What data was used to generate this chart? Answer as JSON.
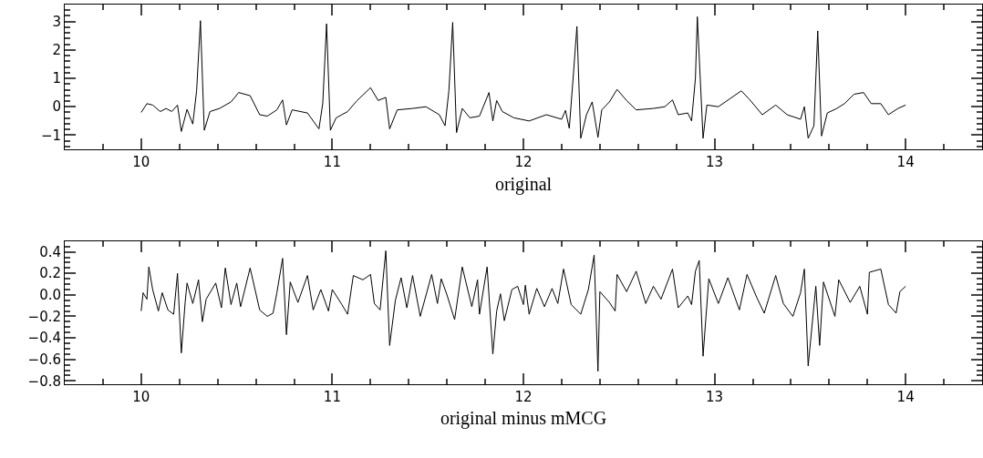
{
  "chart_data": [
    {
      "type": "line",
      "xlabel": "original",
      "color": "#000000",
      "grid": false,
      "legend": false,
      "x": [
        10.0,
        10.03,
        10.06,
        10.1,
        10.13,
        10.16,
        10.19,
        10.21,
        10.24,
        10.27,
        10.29,
        10.31,
        10.33,
        10.36,
        10.41,
        10.47,
        10.51,
        10.57,
        10.62,
        10.66,
        10.71,
        10.74,
        10.76,
        10.79,
        10.87,
        10.93,
        10.95,
        10.97,
        10.99,
        11.02,
        11.08,
        11.13,
        11.2,
        11.24,
        11.28,
        11.3,
        11.34,
        11.42,
        11.49,
        11.56,
        11.59,
        11.61,
        11.63,
        11.65,
        11.68,
        11.72,
        11.77,
        11.82,
        11.84,
        11.86,
        11.89,
        11.95,
        12.03,
        12.12,
        12.2,
        12.22,
        12.24,
        12.26,
        12.28,
        12.3,
        12.33,
        12.36,
        12.39,
        12.41,
        12.45,
        12.49,
        12.54,
        12.59,
        12.68,
        12.74,
        12.78,
        12.81,
        12.86,
        12.88,
        12.9,
        12.91,
        12.94,
        12.96,
        13.02,
        13.08,
        13.14,
        13.18,
        13.25,
        13.32,
        13.38,
        13.45,
        13.47,
        13.49,
        13.52,
        13.54,
        13.56,
        13.59,
        13.64,
        13.68,
        13.73,
        13.78,
        13.82,
        13.87,
        13.91,
        13.96,
        14.0
      ],
      "values": [
        -0.2,
        0.11,
        0.06,
        -0.17,
        -0.06,
        -0.17,
        0.06,
        -0.87,
        -0.09,
        -0.61,
        0.56,
        3.03,
        -0.83,
        -0.17,
        -0.06,
        0.17,
        0.5,
        0.39,
        -0.28,
        -0.33,
        -0.11,
        0.24,
        -0.64,
        -0.11,
        -0.22,
        -0.78,
        0.11,
        2.92,
        -0.83,
        -0.39,
        -0.17,
        0.22,
        0.67,
        0.22,
        0.33,
        -0.78,
        -0.11,
        -0.06,
        0,
        -0.28,
        -0.67,
        0.56,
        2.97,
        -0.91,
        -0.06,
        -0.39,
        -0.33,
        0.5,
        -0.5,
        0.22,
        -0.17,
        -0.39,
        -0.5,
        -0.28,
        -0.44,
        -0.13,
        -0.76,
        1.0,
        2.83,
        -1.11,
        -0.28,
        0.17,
        -1.08,
        -0.11,
        0.17,
        0.61,
        0.22,
        -0.11,
        -0.06,
        0,
        0.24,
        -0.28,
        -0.22,
        -0.5,
        1.0,
        3.17,
        -1.11,
        0.06,
        0,
        0.28,
        0.56,
        0.28,
        -0.28,
        0.06,
        -0.28,
        -0.44,
        0,
        -1.11,
        -0.67,
        2.67,
        -1.03,
        -0.22,
        -0.06,
        0.11,
        0.44,
        0.5,
        0.11,
        0.11,
        -0.28,
        -0.06,
        0.06
      ],
      "xlim": [
        9.6,
        14.4
      ],
      "xticks": [
        {
          "value": 9.8,
          "label": null
        },
        10,
        {
          "value": 10.2,
          "label": null
        },
        {
          "value": 10.4,
          "label": null
        },
        {
          "value": 10.6,
          "label": null
        },
        {
          "value": 10.8,
          "label": null
        },
        11,
        {
          "value": 11.2,
          "label": null
        },
        {
          "value": 11.4,
          "label": null
        },
        {
          "value": 11.6,
          "label": null
        },
        {
          "value": 11.8,
          "label": null
        },
        12,
        {
          "value": 12.2,
          "label": null
        },
        {
          "value": 12.4,
          "label": null
        },
        {
          "value": 12.6,
          "label": null
        },
        {
          "value": 12.8,
          "label": null
        },
        13,
        {
          "value": 13.2,
          "label": null
        },
        {
          "value": 13.4,
          "label": null
        },
        {
          "value": 13.6,
          "label": null
        },
        {
          "value": 13.8,
          "label": null
        },
        14,
        {
          "value": 14.2,
          "label": null
        }
      ],
      "ylim": [
        -1.5,
        3.6
      ],
      "yticks": [
        {
          "value": -1.4,
          "label": null
        },
        {
          "value": -1.2,
          "label": null
        },
        {
          "value": -1,
          "label": "−1"
        },
        {
          "value": -0.8,
          "label": null
        },
        {
          "value": -0.6,
          "label": null
        },
        {
          "value": -0.4,
          "label": null
        },
        {
          "value": -0.2,
          "label": null
        },
        0,
        {
          "value": 0.2,
          "label": null
        },
        {
          "value": 0.4,
          "label": null
        },
        {
          "value": 0.6,
          "label": null
        },
        {
          "value": 0.8,
          "label": null
        },
        1,
        {
          "value": 1.2,
          "label": null
        },
        {
          "value": 1.4,
          "label": null
        },
        {
          "value": 1.6,
          "label": null
        },
        {
          "value": 1.8,
          "label": null
        },
        2,
        {
          "value": 2.2,
          "label": null
        },
        {
          "value": 2.4,
          "label": null
        },
        {
          "value": 2.6,
          "label": null
        },
        {
          "value": 2.8,
          "label": null
        },
        3,
        {
          "value": 3.2,
          "label": null
        },
        {
          "value": 3.4,
          "label": null
        }
      ]
    },
    {
      "type": "line",
      "xlabel": "original minus mMCG",
      "color": "#000000",
      "grid": false,
      "legend": false,
      "x": [
        10.0,
        10.01,
        10.03,
        10.04,
        10.06,
        10.09,
        10.11,
        10.14,
        10.17,
        10.19,
        10.21,
        10.23,
        10.24,
        10.27,
        10.3,
        10.32,
        10.34,
        10.39,
        10.42,
        10.44,
        10.47,
        10.5,
        10.52,
        10.57,
        10.62,
        10.66,
        10.69,
        10.71,
        10.74,
        10.76,
        10.78,
        10.82,
        10.87,
        10.9,
        10.94,
        10.98,
        11.0,
        11.05,
        11.08,
        11.11,
        11.16,
        11.2,
        11.22,
        11.25,
        11.28,
        11.3,
        11.33,
        11.36,
        11.39,
        11.42,
        11.46,
        11.52,
        11.55,
        11.57,
        11.6,
        11.64,
        11.68,
        11.73,
        11.76,
        11.77,
        11.81,
        11.84,
        11.86,
        11.88,
        11.9,
        11.94,
        11.97,
        12.0,
        12.01,
        12.03,
        12.07,
        12.11,
        12.15,
        12.18,
        12.21,
        12.25,
        12.3,
        12.34,
        12.37,
        12.39,
        12.4,
        12.45,
        12.48,
        12.49,
        12.54,
        12.59,
        12.64,
        12.68,
        12.72,
        12.78,
        12.81,
        12.86,
        12.88,
        12.9,
        12.92,
        12.94,
        12.97,
        13.02,
        13.07,
        13.13,
        13.17,
        13.22,
        13.26,
        13.32,
        13.36,
        13.41,
        13.45,
        13.47,
        13.49,
        13.53,
        13.55,
        13.57,
        13.63,
        13.65,
        13.71,
        13.76,
        13.8,
        13.81,
        13.87,
        13.91,
        13.95,
        13.97,
        14.0
      ],
      "values": [
        -0.15,
        0.02,
        -0.04,
        0.26,
        0.05,
        -0.15,
        0.02,
        -0.14,
        -0.18,
        0.2,
        -0.54,
        -0.07,
        0.11,
        -0.08,
        0.14,
        -0.25,
        -0.04,
        0.11,
        -0.12,
        0.25,
        -0.09,
        0.11,
        -0.11,
        0.25,
        -0.14,
        -0.2,
        -0.17,
        0.02,
        0.34,
        -0.37,
        0.12,
        -0.07,
        0.18,
        -0.14,
        0.05,
        -0.15,
        0.05,
        -0.09,
        -0.18,
        0.18,
        0.14,
        0.19,
        -0.08,
        -0.14,
        0.41,
        -0.47,
        -0.05,
        0.16,
        -0.12,
        0.18,
        -0.2,
        0.19,
        -0.08,
        0.15,
        0.0,
        -0.23,
        0.26,
        -0.11,
        0.14,
        -0.18,
        0.26,
        -0.55,
        -0.15,
        0.01,
        -0.24,
        0.05,
        0.08,
        -0.09,
        0.09,
        -0.18,
        0.06,
        -0.11,
        0.06,
        -0.08,
        0.24,
        -0.09,
        -0.18,
        0.05,
        0.37,
        -0.71,
        0.03,
        -0.07,
        -0.15,
        0.19,
        0.03,
        0.22,
        -0.08,
        0.08,
        -0.04,
        0.24,
        -0.12,
        -0.01,
        -0.09,
        0.22,
        0.32,
        -0.57,
        0.15,
        -0.08,
        0.16,
        -0.14,
        0.19,
        -0.02,
        -0.17,
        0.18,
        -0.08,
        -0.2,
        0.02,
        0.24,
        -0.66,
        0.08,
        -0.47,
        0.12,
        -0.2,
        0.14,
        -0.07,
        0.08,
        -0.18,
        0.21,
        0.24,
        -0.09,
        -0.17,
        0.03,
        0.08
      ],
      "xlim": [
        9.6,
        14.4
      ],
      "xticks": [
        {
          "value": 9.8,
          "label": null
        },
        10,
        {
          "value": 10.2,
          "label": null
        },
        {
          "value": 10.4,
          "label": null
        },
        {
          "value": 10.6,
          "label": null
        },
        {
          "value": 10.8,
          "label": null
        },
        11,
        {
          "value": 11.2,
          "label": null
        },
        {
          "value": 11.4,
          "label": null
        },
        {
          "value": 11.6,
          "label": null
        },
        {
          "value": 11.8,
          "label": null
        },
        12,
        {
          "value": 12.2,
          "label": null
        },
        {
          "value": 12.4,
          "label": null
        },
        {
          "value": 12.6,
          "label": null
        },
        {
          "value": 12.8,
          "label": null
        },
        13,
        {
          "value": 13.2,
          "label": null
        },
        {
          "value": 13.4,
          "label": null
        },
        {
          "value": 13.6,
          "label": null
        },
        {
          "value": 13.8,
          "label": null
        },
        14,
        {
          "value": 14.2,
          "label": null
        }
      ],
      "ylim": [
        -0.83,
        0.5
      ],
      "yticks": [
        {
          "value": -0.8,
          "label": "−0.8"
        },
        {
          "value": -0.75,
          "label": null
        },
        {
          "value": -0.7,
          "label": null
        },
        {
          "value": -0.65,
          "label": null
        },
        {
          "value": -0.6,
          "label": "−0.6"
        },
        {
          "value": -0.55,
          "label": null
        },
        {
          "value": -0.5,
          "label": null
        },
        {
          "value": -0.45,
          "label": null
        },
        {
          "value": -0.4,
          "label": "−0.4"
        },
        {
          "value": -0.35,
          "label": null
        },
        {
          "value": -0.3,
          "label": null
        },
        {
          "value": -0.25,
          "label": null
        },
        {
          "value": -0.2,
          "label": "−0.2"
        },
        {
          "value": -0.15,
          "label": null
        },
        {
          "value": -0.1,
          "label": null
        },
        {
          "value": -0.05,
          "label": null
        },
        {
          "value": 0,
          "label": "0.0"
        },
        {
          "value": 0.05,
          "label": null
        },
        {
          "value": 0.1,
          "label": null
        },
        {
          "value": 0.15,
          "label": null
        },
        {
          "value": 0.2,
          "label": "0.2"
        },
        {
          "value": 0.25,
          "label": null
        },
        {
          "value": 0.3,
          "label": null
        },
        {
          "value": 0.35,
          "label": null
        },
        {
          "value": 0.4,
          "label": "0.4"
        },
        {
          "value": 0.45,
          "label": null
        }
      ]
    }
  ]
}
